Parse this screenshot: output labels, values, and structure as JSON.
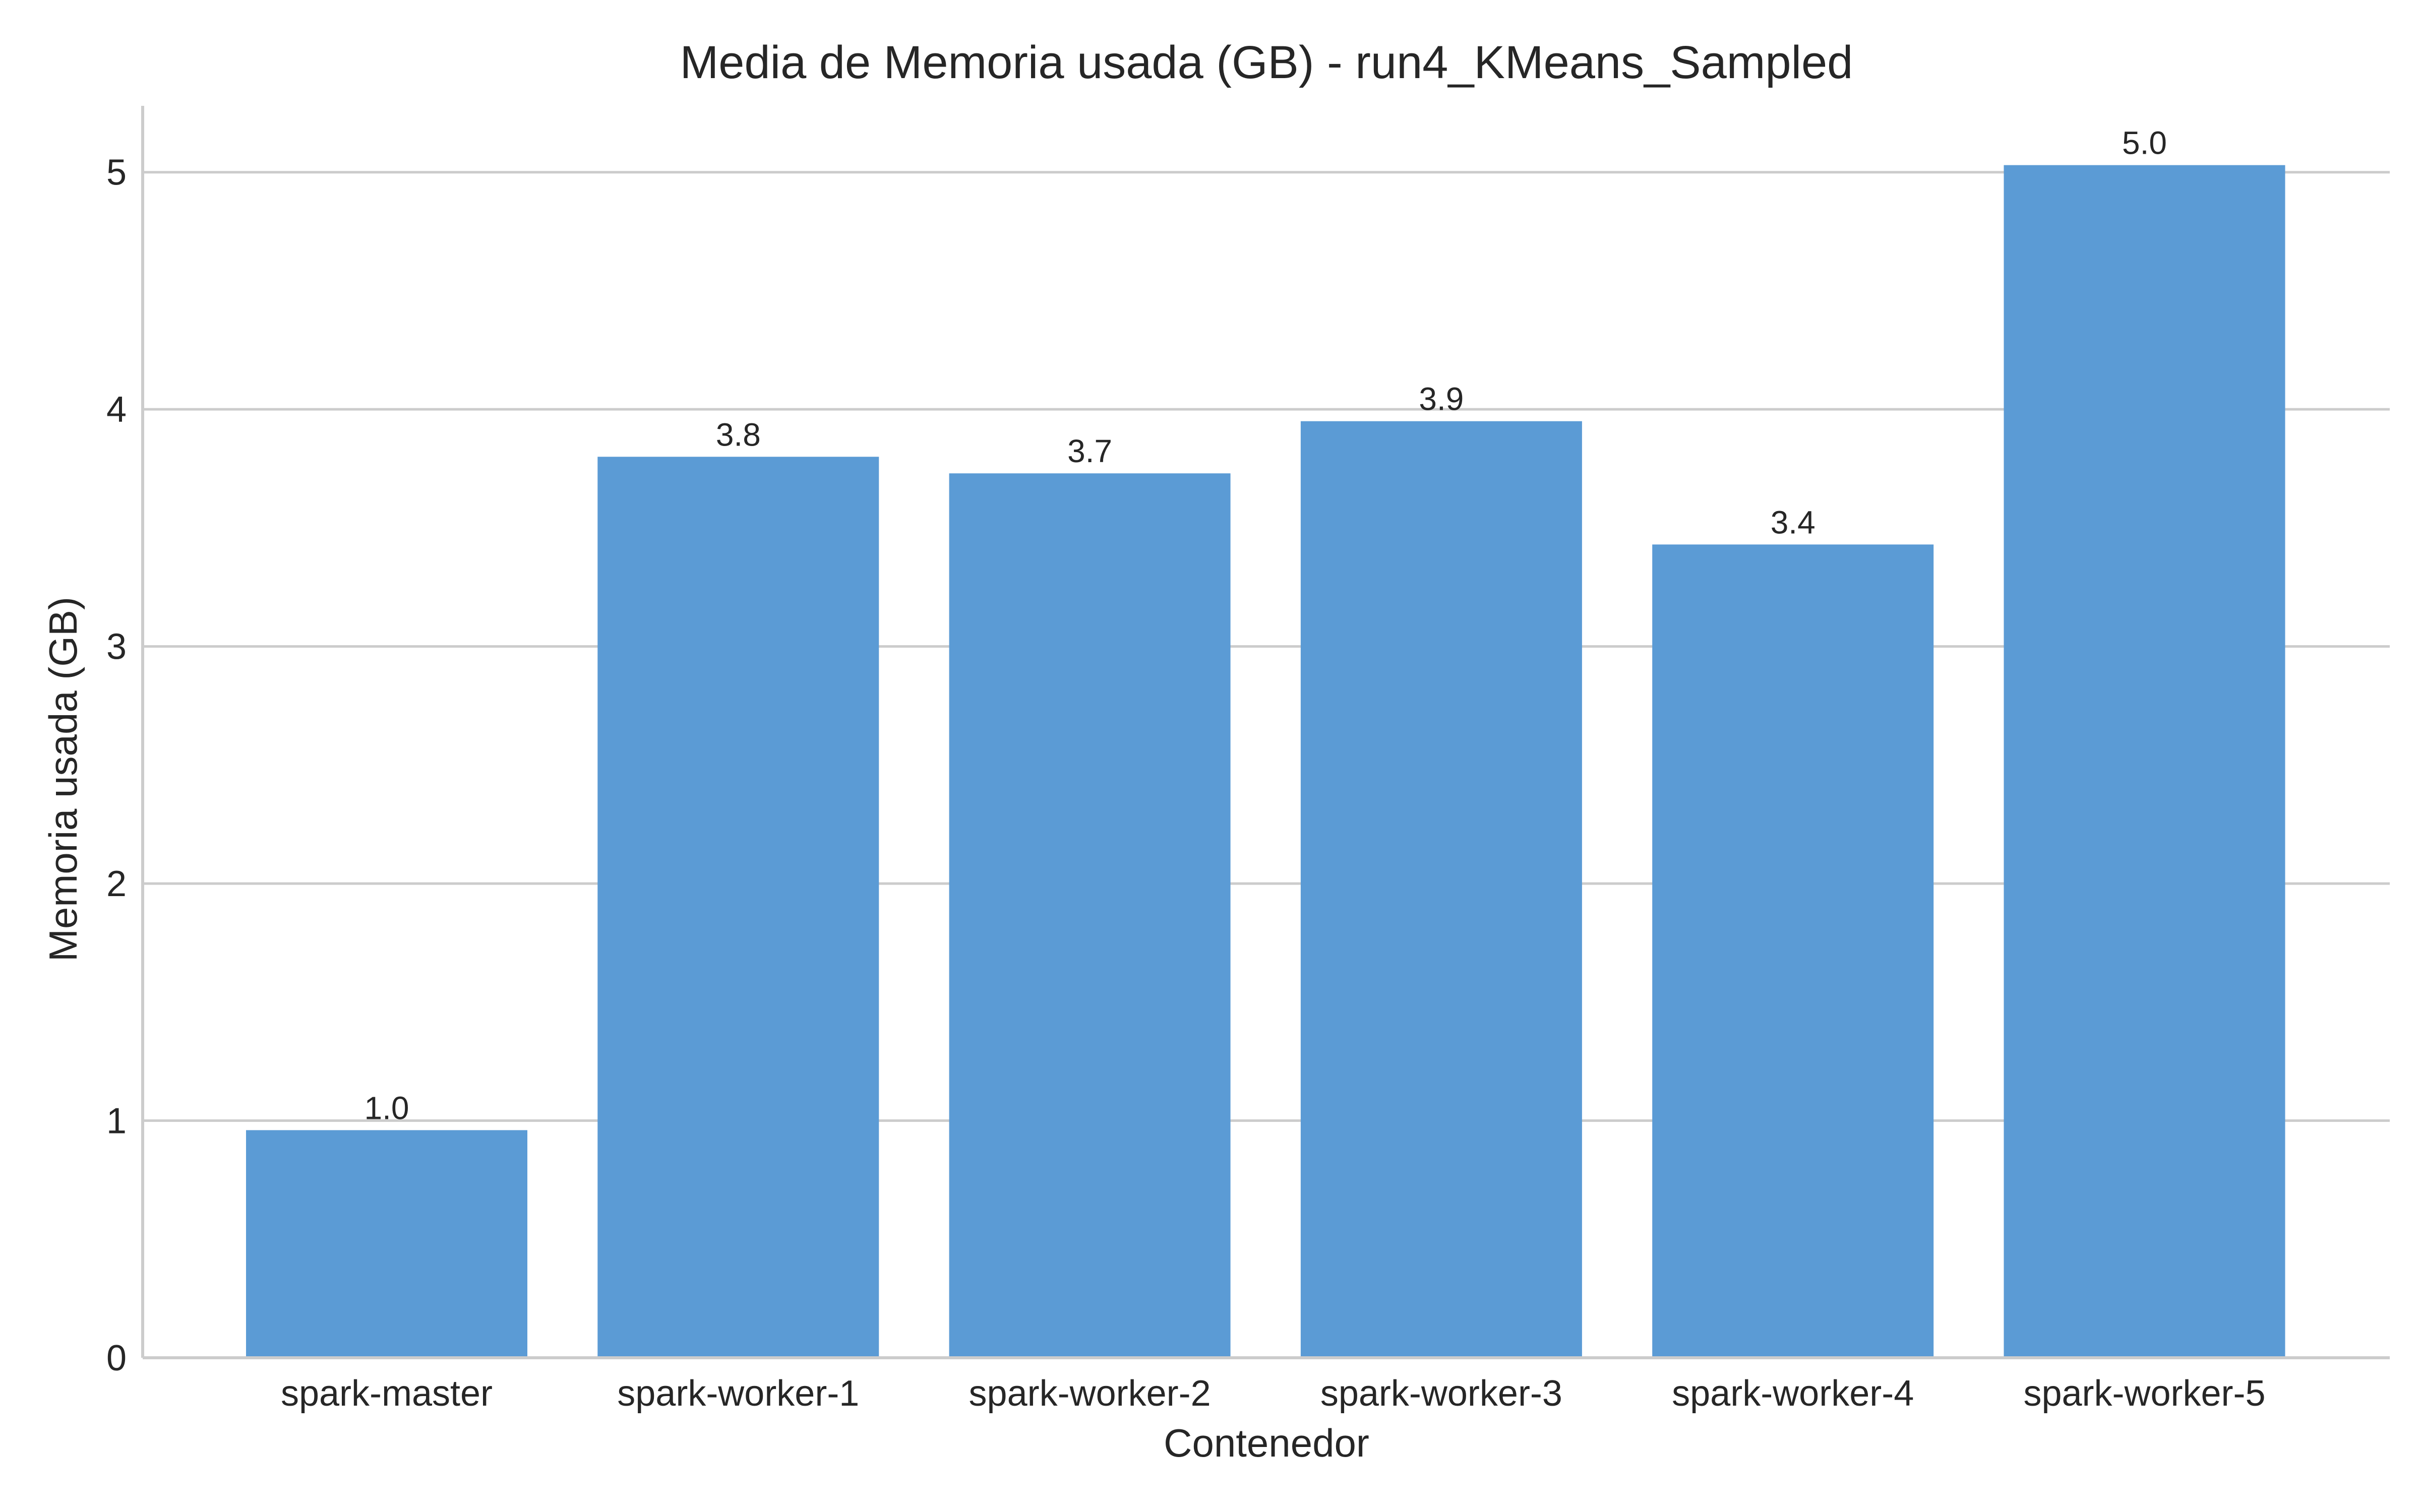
{
  "chart_data": {
    "type": "bar",
    "title": "Media de Memoria usada (GB) - run4_KMeans_Sampled",
    "xlabel": "Contenedor",
    "ylabel": "Memoria usada (GB)",
    "categories": [
      "spark-master",
      "spark-worker-1",
      "spark-worker-2",
      "spark-worker-3",
      "spark-worker-4",
      "spark-worker-5"
    ],
    "values": [
      0.96,
      3.8,
      3.73,
      3.95,
      3.43,
      5.03
    ],
    "data_labels": [
      "1.0",
      "3.8",
      "3.7",
      "3.9",
      "3.4",
      "5.0"
    ],
    "ylim": [
      0,
      5.28
    ],
    "yticks": [
      0,
      1,
      2,
      3,
      4,
      5
    ],
    "ytick_labels": [
      "0",
      "1",
      "2",
      "3",
      "4",
      "5"
    ],
    "grid": "horizontal",
    "bar_color": "#5b9bd5",
    "grid_color": "#cccccc",
    "text_color": "#262626"
  }
}
